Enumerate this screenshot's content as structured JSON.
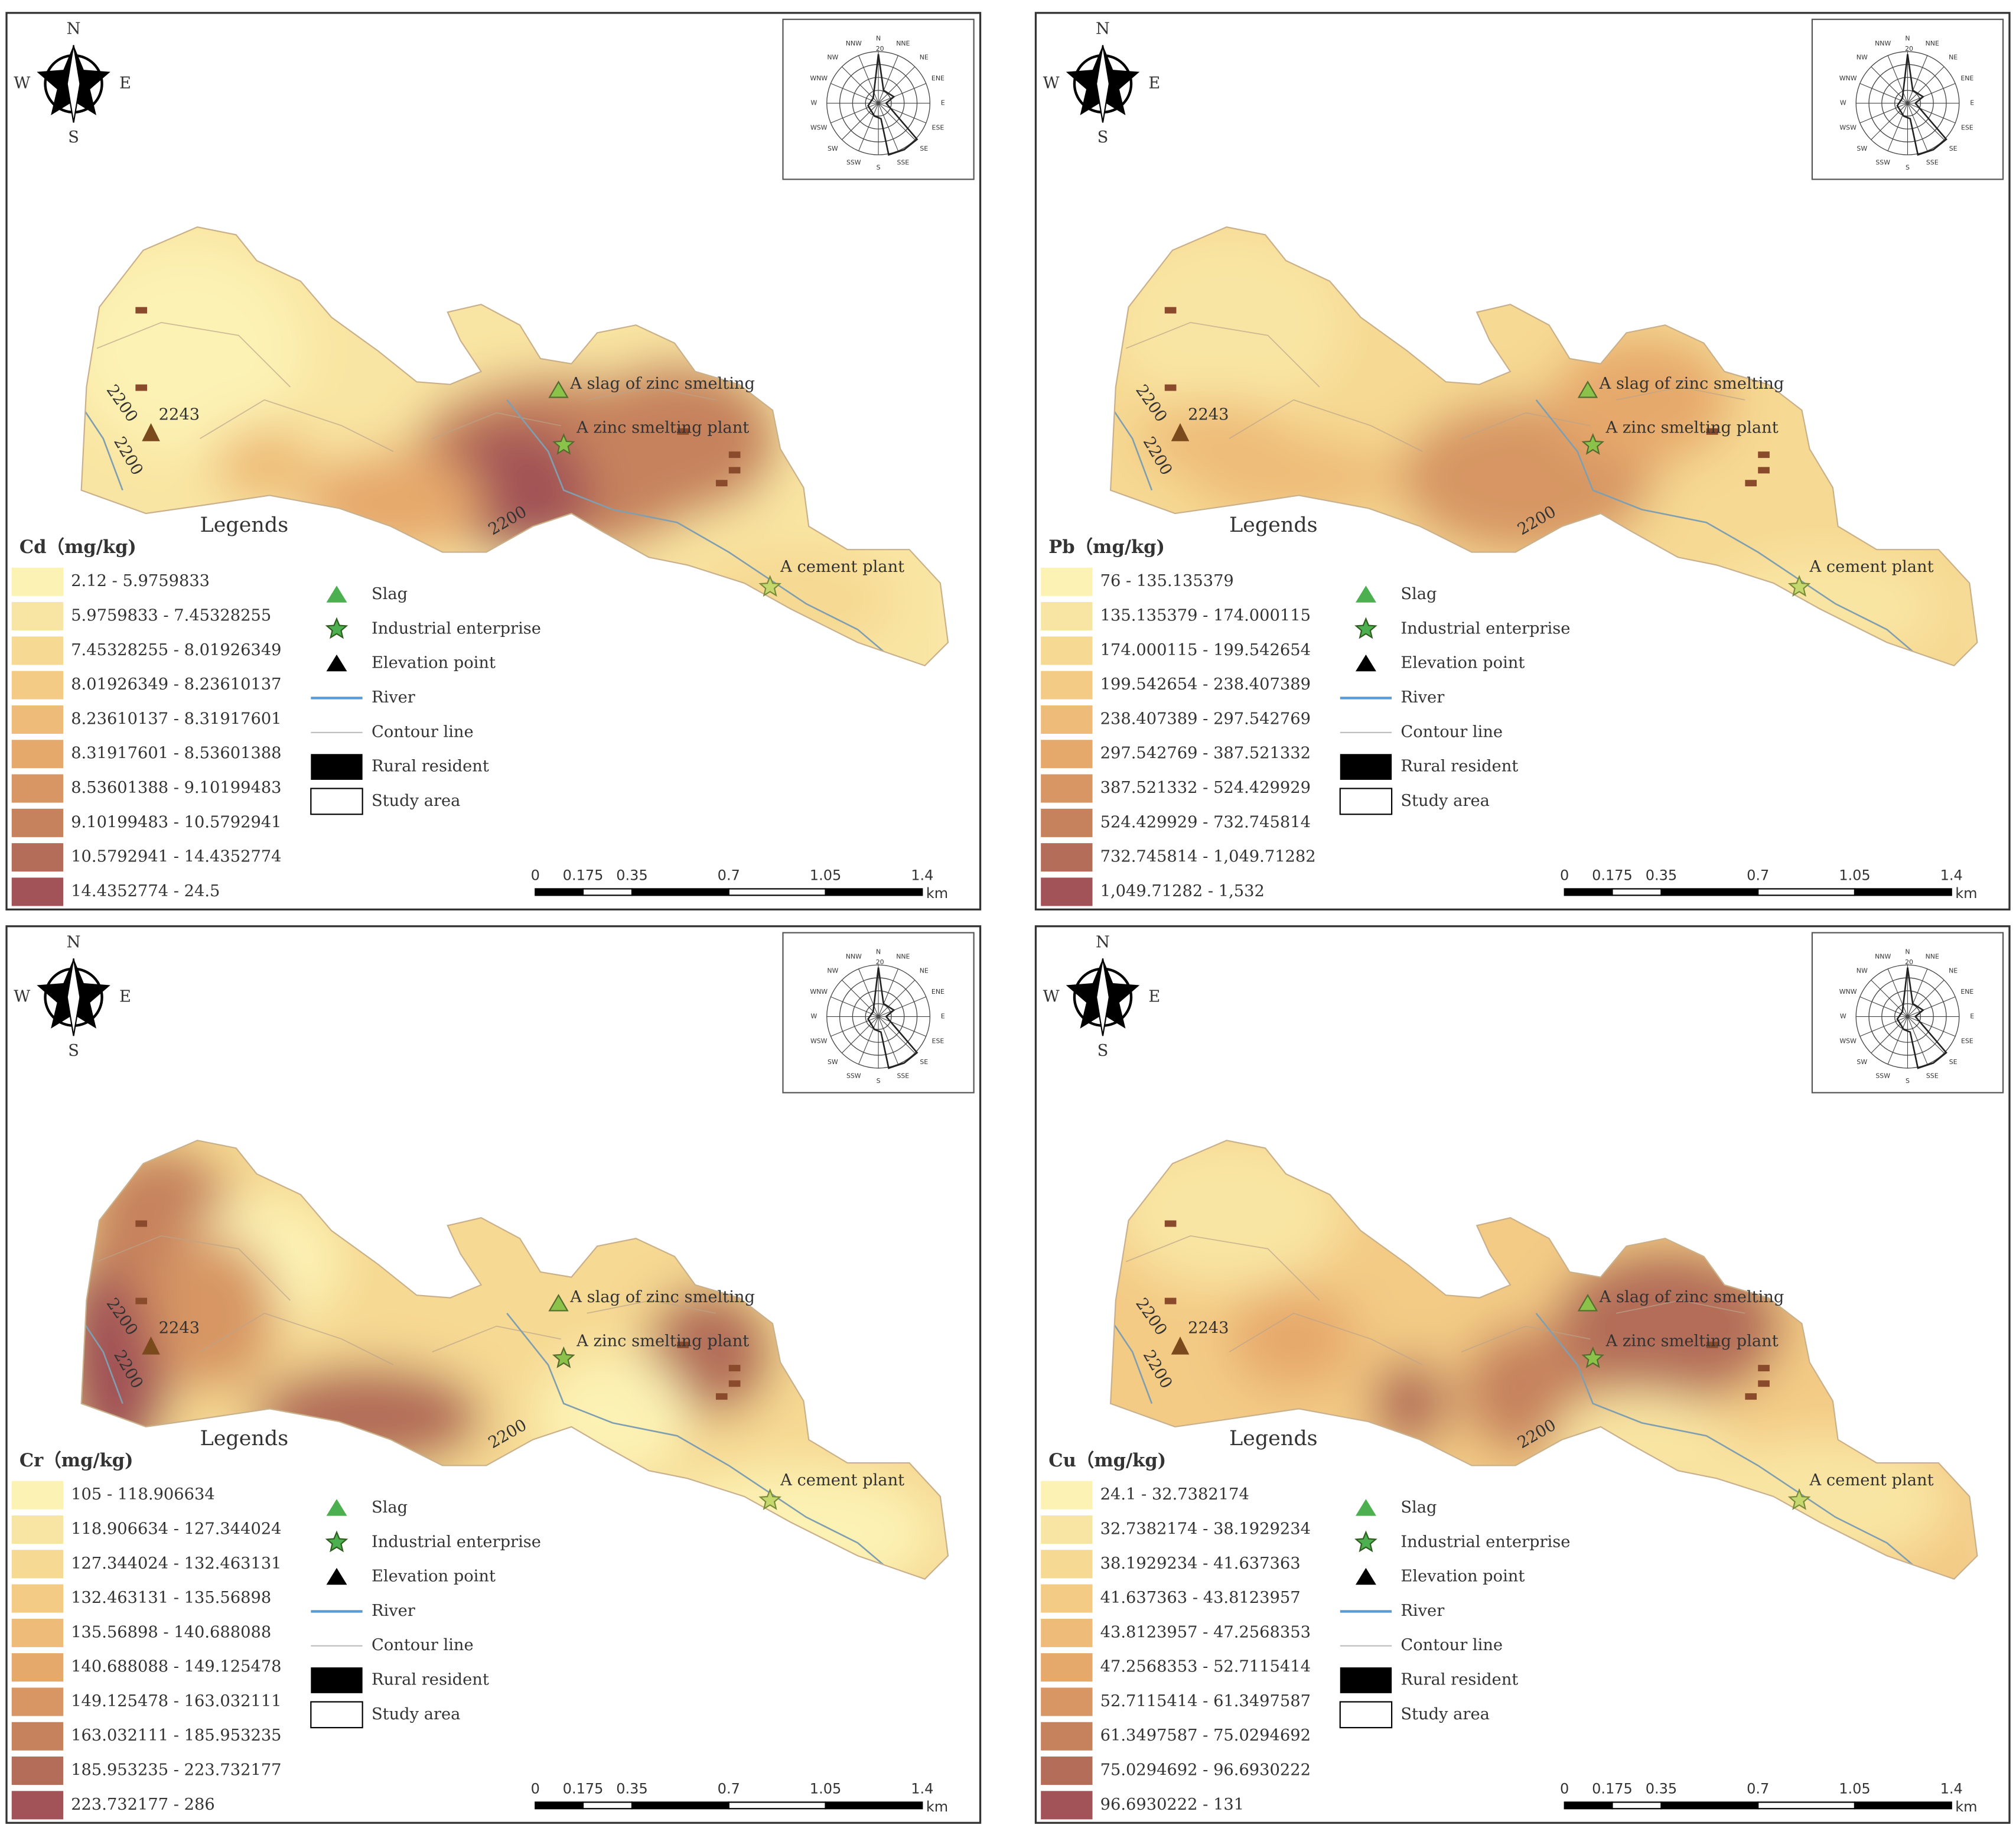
{
  "panels": [
    {
      "element": "Cd（mg/kg)",
      "classes": [
        "2.12 - 5.9759833",
        "5.9759833 - 7.45328255",
        "7.45328255 - 8.01926349",
        "8.01926349 - 8.23610137",
        "8.23610137 - 8.31917601",
        "8.31917601 - 8.53601388",
        "8.53601388 - 9.10199483",
        "9.10199483 - 10.5792941",
        "10.5792941 - 14.4352774",
        "14.4352774 - 24.5"
      ]
    },
    {
      "element": "Pb（mg/kg)",
      "classes": [
        "76 - 135.135379",
        "135.135379 - 174.000115",
        "174.000115 - 199.542654",
        "199.542654 - 238.407389",
        "238.407389 - 297.542769",
        "297.542769 - 387.521332",
        "387.521332 - 524.429929",
        "524.429929 - 732.745814",
        "732.745814 - 1,049.71282",
        "1,049.71282 - 1,532"
      ]
    },
    {
      "element": "Cr（mg/kg)",
      "classes": [
        "105 - 118.906634",
        "118.906634 - 127.344024",
        "127.344024 - 132.463131",
        "132.463131 - 135.56898",
        "135.56898 - 140.688088",
        "140.688088 - 149.125478",
        "149.125478 - 163.032111",
        "163.032111 - 185.953235",
        "185.953235 - 223.732177",
        "223.732177 - 286"
      ]
    },
    {
      "element": "Cu（mg/kg)",
      "classes": [
        "24.1 - 32.7382174",
        "32.7382174 - 38.1929234",
        "38.1929234 - 41.637363",
        "41.637363 - 43.8123957",
        "43.8123957 - 47.2568353",
        "47.2568353 - 52.7115414",
        "52.7115414 - 61.3497587",
        "61.3497587 - 75.0294692",
        "75.0294692 - 96.6930222",
        "96.6930222 - 131"
      ]
    }
  ],
  "colors": [
    "#fcf2b4",
    "#f9e5a3",
    "#f6d993",
    "#f3cb85",
    "#eebc78",
    "#e6a96c",
    "#d79664",
    "#c6825d",
    "#b36d58",
    "#a25357"
  ],
  "legend_title": "Legends",
  "legend_items": [
    "Slag",
    "Industrial enterprise",
    "Elevation point",
    "River",
    "Contour line",
    "Rural resident",
    "Study area"
  ],
  "scale_labels": [
    "0",
    "0.175",
    "0.35",
    "0.7",
    "1.05",
    "1.4"
  ],
  "scale_unit": "km",
  "compass": {
    "n": "N",
    "w": "W",
    "e": "E",
    "s": "S"
  },
  "places": {
    "slag": "A slag of zinc smelting",
    "plant": "A zinc smelting plant",
    "cement": "A cement plant",
    "elevation": "2243",
    "contour": "2200"
  },
  "wind_rose": {
    "ring": "20",
    "directions": [
      "N",
      "NNE",
      "NE",
      "ENE",
      "E",
      "ESE",
      "SE",
      "SSE",
      "S",
      "SSW",
      "SW",
      "WSW",
      "W",
      "WNW",
      "NW",
      "NNW"
    ]
  }
}
